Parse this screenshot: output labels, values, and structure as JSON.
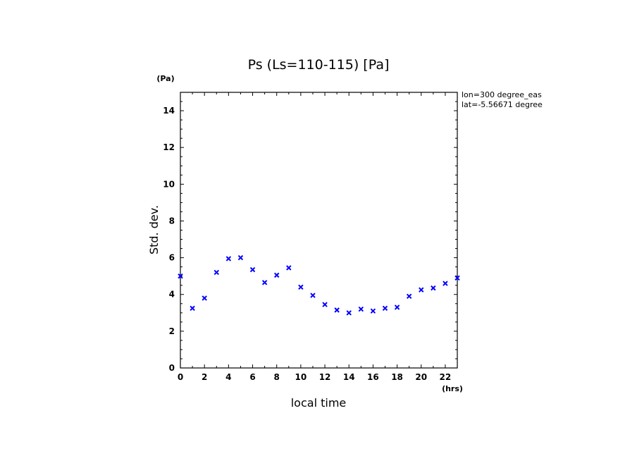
{
  "chart_data": {
    "type": "scatter",
    "title": "Ps (Ls=110-115) [Pa]",
    "xlabel": "local time",
    "ylabel": "Std. dev.",
    "x_unit": "(hrs)",
    "y_unit": "(Pa)",
    "xlim": [
      0,
      23
    ],
    "ylim": [
      0,
      15
    ],
    "x_ticks": [
      0,
      2,
      4,
      6,
      8,
      10,
      12,
      14,
      16,
      18,
      20,
      22
    ],
    "y_ticks": [
      0,
      2,
      4,
      6,
      8,
      10,
      12,
      14
    ],
    "annotations": [
      "lon=300 degree_eas",
      "lat=-5.56671 degree"
    ],
    "marker": "x",
    "marker_color": "#0000ff",
    "grid": false,
    "series": [
      {
        "x": [
          0,
          1,
          2,
          3,
          4,
          5,
          6,
          7,
          8,
          9,
          10,
          11,
          12,
          13,
          14,
          15,
          16,
          17,
          18,
          19,
          20,
          21,
          22,
          23
        ],
        "y": [
          5.0,
          3.25,
          3.8,
          5.2,
          5.95,
          6.0,
          5.35,
          4.65,
          5.05,
          5.45,
          4.4,
          3.95,
          3.45,
          3.15,
          3.0,
          3.2,
          3.1,
          3.25,
          3.3,
          3.9,
          4.25,
          4.35,
          4.6,
          4.9
        ]
      }
    ]
  }
}
